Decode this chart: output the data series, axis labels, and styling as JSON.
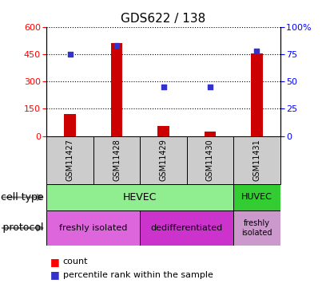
{
  "title": "GDS622 / 138",
  "samples": [
    "GSM11427",
    "GSM11428",
    "GSM11429",
    "GSM11430",
    "GSM11431"
  ],
  "counts": [
    120,
    510,
    55,
    25,
    455
  ],
  "percentile_ranks": [
    75,
    83,
    45,
    45,
    78
  ],
  "left_ylim": [
    0,
    600
  ],
  "left_yticks": [
    0,
    150,
    300,
    450,
    600
  ],
  "right_ylim": [
    0,
    100
  ],
  "right_yticks": [
    0,
    25,
    50,
    75,
    100
  ],
  "bar_color": "#cc0000",
  "dot_color": "#3333cc",
  "cell_type_color_hevec": "#90ee90",
  "cell_type_color_huvec": "#33cc33",
  "growth_color_freshly": "#dd66dd",
  "growth_color_dediff": "#cc33cc",
  "growth_color_last": "#cc99cc",
  "sample_bg_color": "#cccccc",
  "title_fontsize": 11,
  "tick_fontsize": 8,
  "annot_fontsize": 9
}
